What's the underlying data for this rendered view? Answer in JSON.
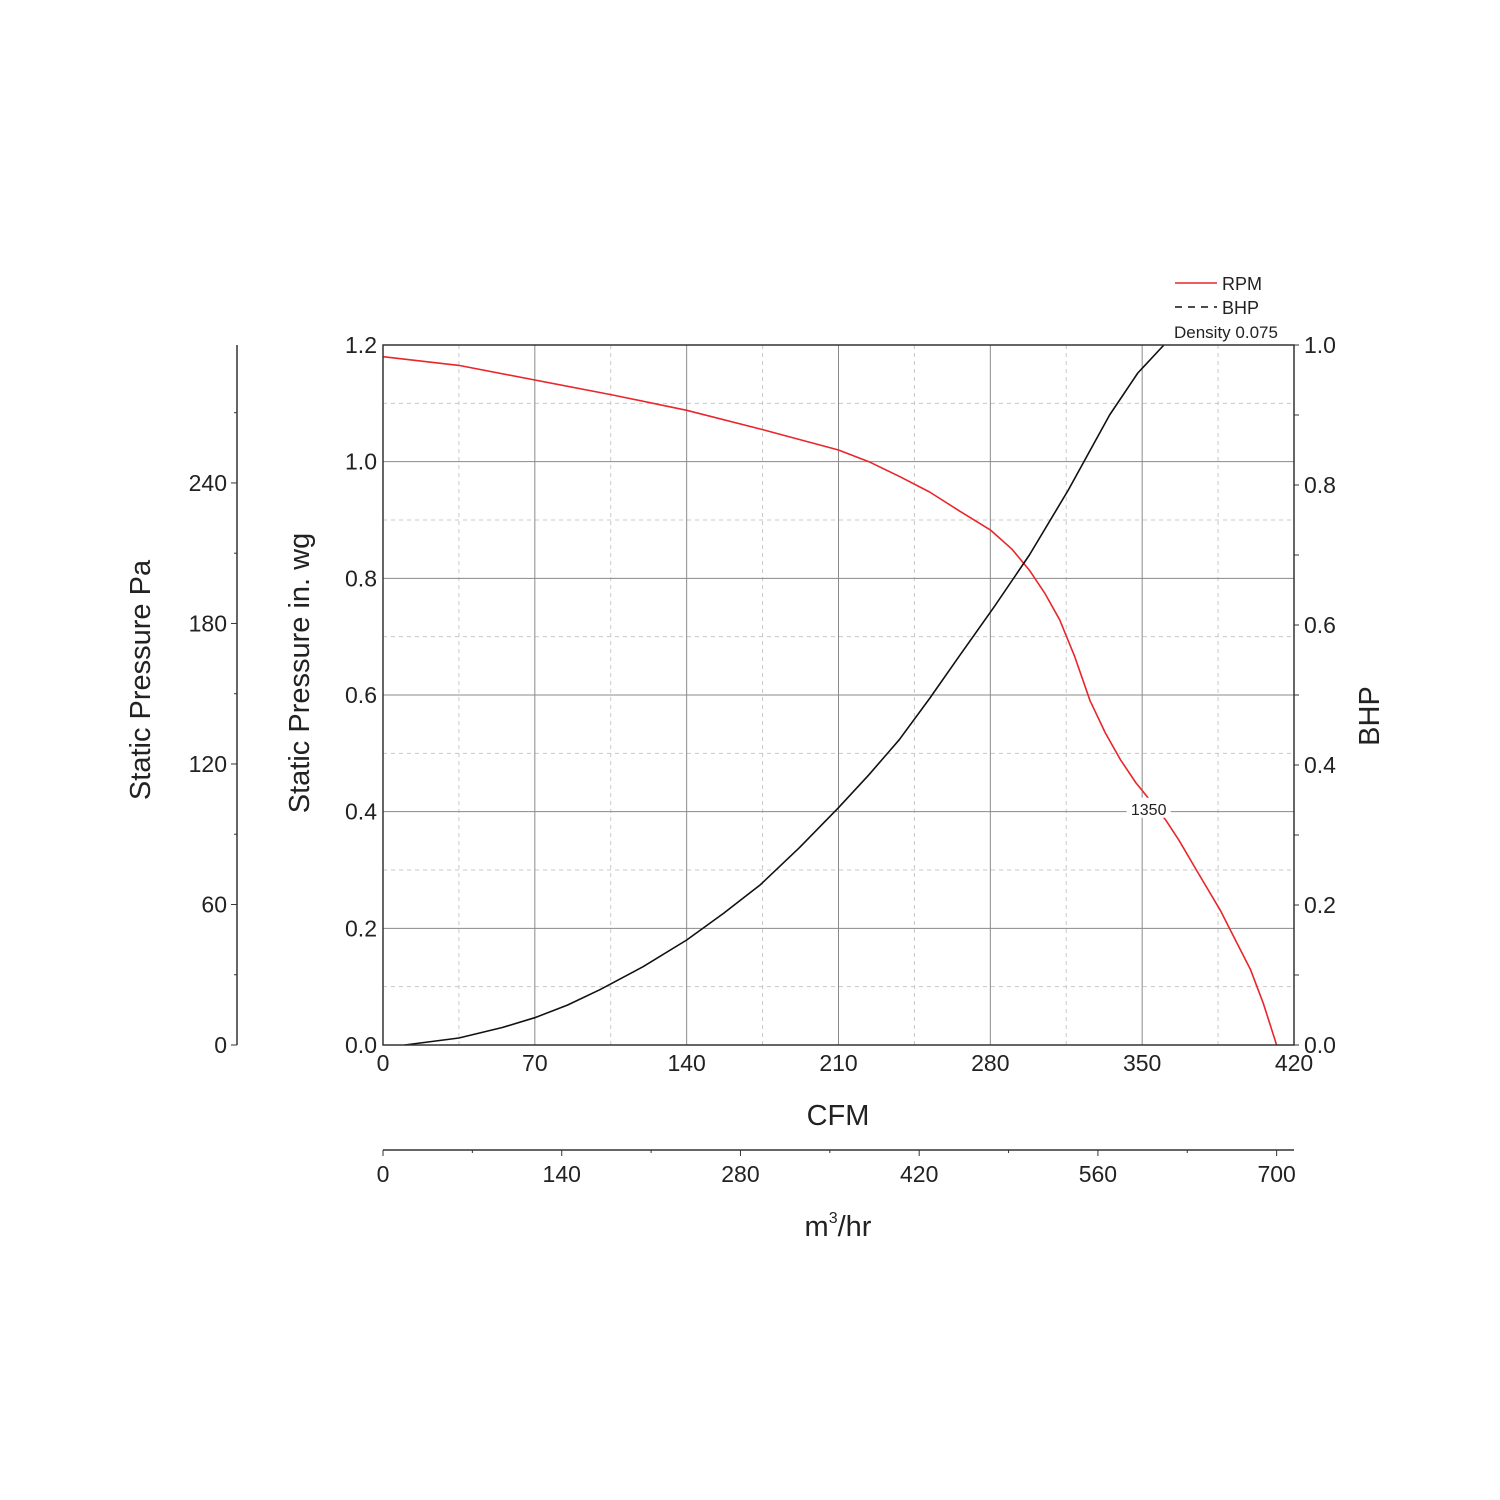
{
  "chart_data": {
    "type": "line",
    "xlabel": "CFM",
    "x2label": "m³/hr",
    "x2label_base": "m",
    "x2label_sup": "3",
    "x2label_rest": "/hr",
    "ylabel": "Static Pressure in. wg",
    "y2label": "Static Pressure Pa",
    "y3label": "BHP",
    "xlim": [
      0,
      420
    ],
    "ylim": [
      0,
      1.2
    ],
    "y3lim": [
      0,
      1.0
    ],
    "x2lim": [
      0,
      713.6
    ],
    "y2lim": [
      0,
      298.9
    ],
    "xticks": [
      0,
      70,
      140,
      210,
      280,
      350,
      420
    ],
    "xticklabels": [
      "0",
      "70",
      "140",
      "210",
      "280",
      "350",
      "420"
    ],
    "yticks": [
      0,
      0.2,
      0.4,
      0.6,
      0.8,
      1.0,
      1.2
    ],
    "yticklabels": [
      "0.0",
      "0.2",
      "0.4",
      "0.6",
      "0.8",
      "1.0",
      "1.2"
    ],
    "y3ticks": [
      0,
      0.2,
      0.4,
      0.6,
      0.8,
      1.0
    ],
    "y3ticklabels": [
      "0.0",
      "0.2",
      "0.4",
      "0.6",
      "0.8",
      "1.0"
    ],
    "x2ticks": [
      0,
      140,
      280,
      420,
      560,
      700
    ],
    "x2ticklabels": [
      "0",
      "140",
      "280",
      "420",
      "560",
      "700"
    ],
    "y2ticks": [
      0,
      60,
      120,
      180,
      240
    ],
    "y2ticklabels": [
      "0",
      "60",
      "120",
      "180",
      "240"
    ],
    "grid": true,
    "legend": {
      "placement": "top-right",
      "entries": [
        {
          "label": "RPM",
          "color": "#e8262b",
          "style": "solid"
        },
        {
          "label": "BHP",
          "color": "#111111",
          "style": "dashed"
        }
      ],
      "note": "Density 0.075"
    },
    "annotations": [
      {
        "text": "1350",
        "x": 353,
        "y": 0.405
      }
    ],
    "series": [
      {
        "name": "RPM",
        "axis": "in. wg",
        "color": "#e8262b",
        "x": [
          0,
          35,
          70,
          105,
          140,
          175,
          210,
          224,
          238,
          252,
          266,
          280,
          290,
          298,
          305,
          312,
          319,
          326,
          333,
          340,
          347,
          354,
          361,
          367,
          375,
          386,
          393,
          400,
          406,
          412
        ],
        "y": [
          1.18,
          1.165,
          1.14,
          1.115,
          1.088,
          1.055,
          1.02,
          1.0,
          0.975,
          0.948,
          0.915,
          0.883,
          0.85,
          0.814,
          0.775,
          0.729,
          0.665,
          0.59,
          0.535,
          0.489,
          0.45,
          0.418,
          0.385,
          0.351,
          0.3,
          0.231,
          0.18,
          0.129,
          0.07,
          0.0
        ]
      },
      {
        "name": "BHP",
        "axis": "BHP",
        "color": "#111111",
        "x": [
          10,
          35,
          55,
          70,
          85,
          100,
          120,
          140,
          157,
          174,
          192,
          210,
          224,
          238,
          252,
          266,
          282,
          298,
          316,
          335,
          348,
          360
        ],
        "y": [
          0.0,
          0.01,
          0.025,
          0.039,
          0.057,
          0.079,
          0.112,
          0.15,
          0.188,
          0.229,
          0.282,
          0.339,
          0.386,
          0.436,
          0.495,
          0.557,
          0.627,
          0.7,
          0.793,
          0.9,
          0.96,
          1.0
        ]
      }
    ]
  }
}
